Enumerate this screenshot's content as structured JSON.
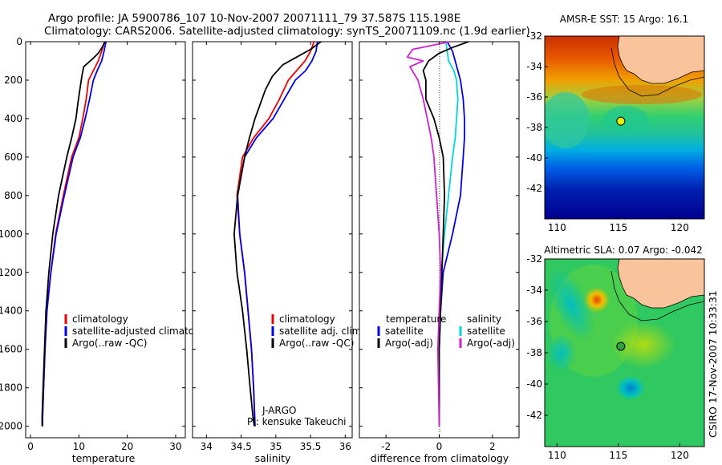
{
  "header": {
    "line1": "Argo profile: JA 5900786_107 10-Nov-2007 20071111_79 37.587S 115.198E",
    "line2": "Climatology: CARS2006. Satellite-adjusted climatology: synTS_20071109.nc (1.9d earlier)"
  },
  "side_label": "CSIRO 17-Nov-2007 10:33:31",
  "float_info": {
    "program": "J-ARGO",
    "pi": "PI: kensuke Takeuchi"
  },
  "chart_data": [
    {
      "type": "line",
      "id": "temperature",
      "xlabel": "temperature",
      "ylabel": "",
      "xlim": [
        -1,
        32
      ],
      "ylim": [
        2060,
        0
      ],
      "xticks": [
        0,
        10,
        20,
        30
      ],
      "yticks": [
        0,
        200,
        400,
        600,
        800,
        1000,
        1200,
        1400,
        1600,
        1800,
        2000
      ],
      "legend": [
        "climatology",
        "satellite-adjusted climatology",
        "Argo(..raw -QC)"
      ],
      "series": [
        {
          "name": "climatology",
          "color": "#ee0000",
          "x": [
            15.3,
            14.7,
            14.0,
            13.0,
            12.0,
            11.5,
            10.8,
            10.0,
            8.5,
            6.8,
            5.2,
            4.2,
            3.4,
            3.0,
            2.7,
            2.5,
            2.5
          ],
          "y": [
            0,
            50,
            100,
            150,
            200,
            300,
            400,
            500,
            600,
            800,
            1000,
            1200,
            1400,
            1600,
            1800,
            1950,
            2000
          ]
        },
        {
          "name": "satellite-adjusted climatology",
          "color": "#0000ee",
          "x": [
            15.6,
            15.2,
            14.7,
            13.8,
            13.0,
            12.2,
            11.3,
            10.3,
            8.8,
            7.0,
            5.3,
            4.2,
            3.4,
            3.0,
            2.7,
            2.5,
            2.5
          ],
          "y": [
            0,
            50,
            100,
            150,
            200,
            300,
            400,
            500,
            600,
            800,
            1000,
            1200,
            1400,
            1600,
            1800,
            1950,
            2000
          ]
        },
        {
          "name": "Argo(..raw -QC)",
          "color": "#000000",
          "x": [
            15.4,
            14.8,
            14.0,
            12.8,
            11.0,
            10.6,
            10.2,
            9.8,
            9.4,
            8.5,
            7.5,
            5.8,
            4.6,
            3.8,
            3.2,
            2.9,
            2.6,
            2.4,
            2.4
          ],
          "y": [
            0,
            30,
            60,
            90,
            130,
            180,
            250,
            320,
            400,
            500,
            600,
            800,
            1000,
            1200,
            1400,
            1600,
            1800,
            1950,
            2000
          ]
        }
      ]
    },
    {
      "type": "line",
      "id": "salinity",
      "xlabel": "salinity",
      "ylabel": "",
      "xlim": [
        33.8,
        36.1
      ],
      "ylim": [
        2060,
        0
      ],
      "xticks": [
        34,
        34.5,
        35,
        35.5,
        36
      ],
      "xticklabels": [
        "34",
        "34.5",
        "35",
        "35.5",
        "36"
      ],
      "legend": [
        "climatology",
        "satellite adj. clim.",
        "Argo(..raw -QC)"
      ],
      "series": [
        {
          "name": "climatology",
          "color": "#ee0000",
          "x": [
            35.55,
            35.5,
            35.42,
            35.3,
            35.18,
            35.05,
            34.9,
            34.68,
            34.52,
            34.44,
            34.48,
            34.55,
            34.6,
            34.65,
            34.68,
            34.7
          ],
          "y": [
            0,
            50,
            100,
            150,
            200,
            300,
            400,
            500,
            600,
            800,
            1000,
            1200,
            1400,
            1600,
            1800,
            2000
          ]
        },
        {
          "name": "satellite adj. clim.",
          "color": "#0000ee",
          "x": [
            35.6,
            35.58,
            35.52,
            35.43,
            35.28,
            35.12,
            34.96,
            34.72,
            34.55,
            34.45,
            34.48,
            34.55,
            34.6,
            34.65,
            34.68,
            34.7
          ],
          "y": [
            0,
            50,
            100,
            150,
            200,
            300,
            400,
            500,
            600,
            800,
            1000,
            1200,
            1400,
            1600,
            1800,
            2000
          ]
        },
        {
          "name": "Argo(..raw -QC)",
          "color": "#000000",
          "x": [
            35.65,
            35.5,
            35.3,
            35.1,
            34.95,
            34.85,
            34.78,
            34.7,
            34.62,
            34.55,
            34.45,
            34.4,
            34.44,
            34.52,
            34.58,
            34.63,
            34.67,
            34.69
          ],
          "y": [
            0,
            40,
            80,
            120,
            180,
            250,
            320,
            400,
            500,
            600,
            800,
            1000,
            1200,
            1400,
            1600,
            1800,
            1950,
            2000
          ]
        }
      ]
    },
    {
      "type": "line",
      "id": "difference",
      "xlabel": "difference from climatology",
      "ylabel": "",
      "xlim": [
        -3,
        3
      ],
      "ylim": [
        2060,
        0
      ],
      "xticks": [
        -2,
        0,
        2
      ],
      "legend_groups": [
        {
          "title": "temperature",
          "items": [
            "satellite",
            "Argo(-adj)"
          ]
        },
        {
          "title": "salinity",
          "items": [
            "satellite",
            "Argo(-adj)"
          ]
        }
      ],
      "series": [
        {
          "name": "temperature satellite",
          "color": "#0000ee",
          "x": [
            0.3,
            0.5,
            0.6,
            0.7,
            0.8,
            0.9,
            0.95,
            0.95,
            0.9,
            0.8,
            0.5,
            0.15,
            0.05,
            0.0,
            0.0
          ],
          "y": [
            0,
            50,
            100,
            150,
            200,
            300,
            400,
            500,
            600,
            800,
            1000,
            1200,
            1400,
            1600,
            2000
          ]
        },
        {
          "name": "salinity satellite",
          "color": "#00d8d8",
          "x": [
            0.25,
            0.3,
            0.35,
            0.55,
            0.65,
            0.7,
            0.65,
            0.6,
            0.5,
            0.35,
            0.2,
            0.08,
            0.03,
            0.0,
            0.0
          ],
          "y": [
            0,
            50,
            100,
            150,
            200,
            300,
            400,
            500,
            600,
            800,
            1000,
            1200,
            1400,
            1600,
            2000
          ]
        },
        {
          "name": "temperature Argo(-adj)",
          "color": "#000000",
          "x": [
            1.1,
            0.5,
            0.0,
            -0.4,
            -0.6,
            -0.5,
            -0.5,
            -0.2,
            0.0,
            0.15,
            0.2,
            0.15,
            0.1,
            0.05,
            0.0,
            0.0
          ],
          "y": [
            0,
            30,
            60,
            100,
            150,
            200,
            300,
            400,
            500,
            600,
            800,
            1000,
            1200,
            1400,
            1600,
            2000
          ]
        },
        {
          "name": "salinity Argo(-adj)",
          "color": "#d020d0",
          "x": [
            0.4,
            -1.0,
            -1.2,
            -0.6,
            -1.1,
            -0.8,
            -0.6,
            -0.45,
            -0.3,
            -0.2,
            -0.1,
            0.0,
            0.05,
            0.0,
            -0.05,
            0.0
          ],
          "y": [
            0,
            40,
            80,
            100,
            130,
            200,
            300,
            400,
            500,
            600,
            800,
            1000,
            1200,
            1400,
            1600,
            2000
          ]
        }
      ]
    },
    {
      "type": "heatmap",
      "id": "sst_map",
      "title": "AMSR-E SST: 15 Argo: 16.1",
      "xlim": [
        109,
        122
      ],
      "ylim": [
        -44,
        -32
      ],
      "xticks": [
        110,
        115,
        120
      ],
      "yticks": [
        -42,
        -40,
        -38,
        -36,
        -34,
        -32
      ],
      "float_position": {
        "lon": 115.198,
        "lat": -37.587
      }
    },
    {
      "type": "heatmap",
      "id": "sla_map",
      "title": "Altimetric SLA: 0.07 Argo: -0.042",
      "xlim": [
        109,
        122
      ],
      "ylim": [
        -44,
        -32
      ],
      "xticks": [
        110,
        115,
        120
      ],
      "yticks": [
        -42,
        -40,
        -38,
        -36,
        -34,
        -32
      ],
      "float_position": {
        "lon": 115.198,
        "lat": -37.587
      }
    }
  ]
}
